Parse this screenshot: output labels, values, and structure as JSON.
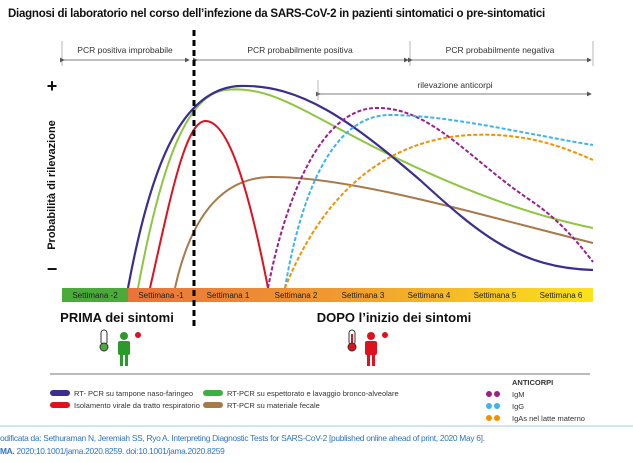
{
  "title": "Diagnosi di laboratorio nel corso dell’infezione da SARS-CoV-2 in pazienti sintomatici o pre-sintomatici",
  "phases": [
    "PCR positiva improbabile",
    "PCR probabilmente positiva",
    "PCR probabilmente negativa"
  ],
  "antibody_window": "rilevazione anticorpi",
  "y_axis": {
    "label": "Probabilità di rilevazione",
    "plus": "+",
    "minus": "−"
  },
  "weeks": [
    "Settimana -2",
    "Settimana -1",
    "Settimana 1",
    "Settimana 2",
    "Settimana 3",
    "Settimana 4",
    "Settimana 5",
    "Settimana 6"
  ],
  "before_label": "PRIMA dei sintomi",
  "after_label": "DOPO l’inizio dei sintomi",
  "legend": {
    "items": [
      {
        "label": "RT- PCR su tampone naso-faringeo",
        "color": "#3a2f8f"
      },
      {
        "label": "Isolamento virale da tratto respiratorio",
        "color": "#e0101e"
      },
      {
        "label": "RT-PCR su espettorato e lavaggio bronco-alveolare",
        "color": "#3cb043"
      },
      {
        "label": "RT-PCR su materiale fecale",
        "color": "#a87a4a"
      }
    ],
    "antibody_title": "ANTICORPI",
    "antibodies": [
      {
        "label": "IgM",
        "color": "#9c1f8f"
      },
      {
        "label": "IgG",
        "color": "#3db4ea"
      },
      {
        "label": "IgAs nel latte materno",
        "color": "#f39200"
      }
    ]
  },
  "footer": {
    "line1": "odificata da: Sethuraman N, Jeremiah SS, Ryo A. Interpreting Diagnostic Tests for SARS-CoV-2 [published online ahead of print, 2020 May 6].",
    "line2_bold": "MA.",
    "line2": " 2020;10.1001/jama.2020.8259. doi:10.1001/jama.2020.8259"
  }
}
